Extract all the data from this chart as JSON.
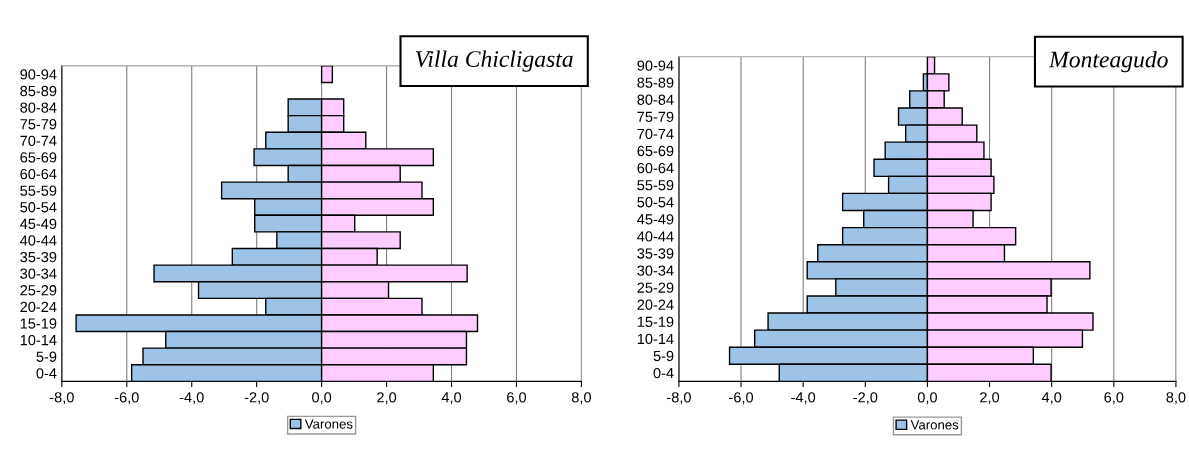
{
  "chart_data": [
    {
      "type": "bar",
      "orientation": "horizontal",
      "title": "Villa Chicligasta",
      "categories": [
        "90-94",
        "85-89",
        "80-84",
        "75-79",
        "70-74",
        "65-69",
        "60-64",
        "55-59",
        "50-54",
        "45-49",
        "40-44",
        "35-39",
        "30-34",
        "25-29",
        "20-24",
        "15-19",
        "10-14",
        "5-9",
        "0-4"
      ],
      "series": [
        {
          "name": "Varones",
          "color": "#9dc3e6",
          "values": [
            null,
            null,
            -1.03,
            -1.03,
            -1.72,
            -2.08,
            -1.03,
            -3.08,
            -2.06,
            -2.06,
            -1.38,
            -2.75,
            -5.16,
            -3.79,
            -1.72,
            -7.56,
            -4.8,
            -5.5,
            -5.85
          ]
        },
        {
          "color": "#ffccff",
          "values": [
            0.33,
            null,
            0.68,
            0.68,
            1.36,
            3.44,
            2.42,
            3.09,
            3.44,
            1.02,
            2.42,
            1.71,
            4.48,
            2.06,
            3.09,
            4.8,
            4.46,
            4.46,
            3.44
          ]
        }
      ],
      "xlim": [
        -8,
        8
      ],
      "xticks": [
        {
          "value": -8,
          "label": "-8,0"
        },
        {
          "value": -6,
          "label": "-6,0"
        },
        {
          "value": -4,
          "label": "-4,0"
        },
        {
          "value": -2,
          "label": "-2,0"
        },
        {
          "value": 0,
          "label": "0,0"
        },
        {
          "value": 2,
          "label": "2,0"
        },
        {
          "value": 4,
          "label": "4,0"
        },
        {
          "value": 6,
          "label": "6,0"
        },
        {
          "value": 8,
          "label": "8,0"
        }
      ],
      "grid": "x",
      "legend": "bottom",
      "stacked": true
    },
    {
      "type": "bar",
      "orientation": "horizontal",
      "title": "Monteagudo",
      "categories": [
        "90-94",
        "85-89",
        "80-84",
        "75-79",
        "70-74",
        "65-69",
        "60-64",
        "55-59",
        "50-54",
        "45-49",
        "40-44",
        "35-39",
        "30-34",
        "25-29",
        "20-24",
        "15-19",
        "10-14",
        "5-9",
        "0-4"
      ],
      "series": [
        {
          "name": "Varones",
          "color": "#9dc3e6",
          "values": [
            null,
            -0.13,
            -0.57,
            -0.93,
            -0.7,
            -1.36,
            -1.72,
            -1.25,
            -2.73,
            -2.05,
            -2.73,
            -3.53,
            -3.87,
            -2.95,
            -3.87,
            -5.13,
            -5.56,
            -6.37,
            -4.77
          ]
        },
        {
          "color": "#ffccff",
          "values": [
            0.23,
            0.69,
            0.54,
            1.12,
            1.59,
            1.82,
            2.05,
            2.14,
            2.05,
            1.47,
            2.84,
            2.48,
            5.23,
            3.98,
            3.85,
            5.33,
            4.99,
            3.41,
            3.98
          ]
        }
      ],
      "xlim": [
        -8,
        8
      ],
      "xticks": [
        {
          "value": -8,
          "label": "-8,0"
        },
        {
          "value": -6,
          "label": "-6,0"
        },
        {
          "value": -4,
          "label": "-4,0"
        },
        {
          "value": -2,
          "label": "-2,0"
        },
        {
          "value": 0,
          "label": "0,0"
        },
        {
          "value": 2,
          "label": "2,0"
        },
        {
          "value": 4,
          "label": "4,0"
        },
        {
          "value": 6,
          "label": "6,0"
        },
        {
          "value": 8,
          "label": "8,0"
        }
      ],
      "grid": "x",
      "legend": "bottom",
      "stacked": true
    }
  ]
}
